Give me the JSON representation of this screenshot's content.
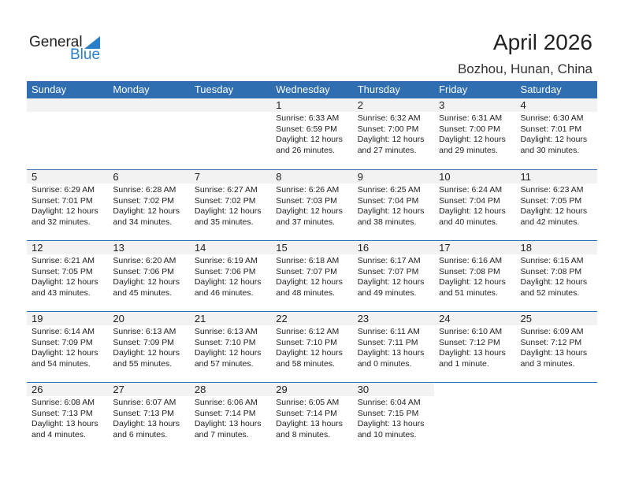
{
  "logo": {
    "text1": "General",
    "text2": "Blue"
  },
  "header": {
    "title": "April 2026",
    "location": "Bozhou, Hunan, China"
  },
  "weekdays": [
    "Sunday",
    "Monday",
    "Tuesday",
    "Wednesday",
    "Thursday",
    "Friday",
    "Saturday"
  ],
  "colors": {
    "header": "#2f6eb1",
    "date_band": "#f2f2f2"
  },
  "weeks": [
    [
      null,
      null,
      null,
      {
        "d": "1",
        "sunrise": "Sunrise: 6:33 AM",
        "sunset": "Sunset: 6:59 PM",
        "daylight": "Daylight: 12 hours",
        "minutes": "and 26 minutes."
      },
      {
        "d": "2",
        "sunrise": "Sunrise: 6:32 AM",
        "sunset": "Sunset: 7:00 PM",
        "daylight": "Daylight: 12 hours",
        "minutes": "and 27 minutes."
      },
      {
        "d": "3",
        "sunrise": "Sunrise: 6:31 AM",
        "sunset": "Sunset: 7:00 PM",
        "daylight": "Daylight: 12 hours",
        "minutes": "and 29 minutes."
      },
      {
        "d": "4",
        "sunrise": "Sunrise: 6:30 AM",
        "sunset": "Sunset: 7:01 PM",
        "daylight": "Daylight: 12 hours",
        "minutes": "and 30 minutes."
      }
    ],
    [
      {
        "d": "5",
        "sunrise": "Sunrise: 6:29 AM",
        "sunset": "Sunset: 7:01 PM",
        "daylight": "Daylight: 12 hours",
        "minutes": "and 32 minutes."
      },
      {
        "d": "6",
        "sunrise": "Sunrise: 6:28 AM",
        "sunset": "Sunset: 7:02 PM",
        "daylight": "Daylight: 12 hours",
        "minutes": "and 34 minutes."
      },
      {
        "d": "7",
        "sunrise": "Sunrise: 6:27 AM",
        "sunset": "Sunset: 7:02 PM",
        "daylight": "Daylight: 12 hours",
        "minutes": "and 35 minutes."
      },
      {
        "d": "8",
        "sunrise": "Sunrise: 6:26 AM",
        "sunset": "Sunset: 7:03 PM",
        "daylight": "Daylight: 12 hours",
        "minutes": "and 37 minutes."
      },
      {
        "d": "9",
        "sunrise": "Sunrise: 6:25 AM",
        "sunset": "Sunset: 7:04 PM",
        "daylight": "Daylight: 12 hours",
        "minutes": "and 38 minutes."
      },
      {
        "d": "10",
        "sunrise": "Sunrise: 6:24 AM",
        "sunset": "Sunset: 7:04 PM",
        "daylight": "Daylight: 12 hours",
        "minutes": "and 40 minutes."
      },
      {
        "d": "11",
        "sunrise": "Sunrise: 6:23 AM",
        "sunset": "Sunset: 7:05 PM",
        "daylight": "Daylight: 12 hours",
        "minutes": "and 42 minutes."
      }
    ],
    [
      {
        "d": "12",
        "sunrise": "Sunrise: 6:21 AM",
        "sunset": "Sunset: 7:05 PM",
        "daylight": "Daylight: 12 hours",
        "minutes": "and 43 minutes."
      },
      {
        "d": "13",
        "sunrise": "Sunrise: 6:20 AM",
        "sunset": "Sunset: 7:06 PM",
        "daylight": "Daylight: 12 hours",
        "minutes": "and 45 minutes."
      },
      {
        "d": "14",
        "sunrise": "Sunrise: 6:19 AM",
        "sunset": "Sunset: 7:06 PM",
        "daylight": "Daylight: 12 hours",
        "minutes": "and 46 minutes."
      },
      {
        "d": "15",
        "sunrise": "Sunrise: 6:18 AM",
        "sunset": "Sunset: 7:07 PM",
        "daylight": "Daylight: 12 hours",
        "minutes": "and 48 minutes."
      },
      {
        "d": "16",
        "sunrise": "Sunrise: 6:17 AM",
        "sunset": "Sunset: 7:07 PM",
        "daylight": "Daylight: 12 hours",
        "minutes": "and 49 minutes."
      },
      {
        "d": "17",
        "sunrise": "Sunrise: 6:16 AM",
        "sunset": "Sunset: 7:08 PM",
        "daylight": "Daylight: 12 hours",
        "minutes": "and 51 minutes."
      },
      {
        "d": "18",
        "sunrise": "Sunrise: 6:15 AM",
        "sunset": "Sunset: 7:08 PM",
        "daylight": "Daylight: 12 hours",
        "minutes": "and 52 minutes."
      }
    ],
    [
      {
        "d": "19",
        "sunrise": "Sunrise: 6:14 AM",
        "sunset": "Sunset: 7:09 PM",
        "daylight": "Daylight: 12 hours",
        "minutes": "and 54 minutes."
      },
      {
        "d": "20",
        "sunrise": "Sunrise: 6:13 AM",
        "sunset": "Sunset: 7:09 PM",
        "daylight": "Daylight: 12 hours",
        "minutes": "and 55 minutes."
      },
      {
        "d": "21",
        "sunrise": "Sunrise: 6:13 AM",
        "sunset": "Sunset: 7:10 PM",
        "daylight": "Daylight: 12 hours",
        "minutes": "and 57 minutes."
      },
      {
        "d": "22",
        "sunrise": "Sunrise: 6:12 AM",
        "sunset": "Sunset: 7:10 PM",
        "daylight": "Daylight: 12 hours",
        "minutes": "and 58 minutes."
      },
      {
        "d": "23",
        "sunrise": "Sunrise: 6:11 AM",
        "sunset": "Sunset: 7:11 PM",
        "daylight": "Daylight: 13 hours",
        "minutes": "and 0 minutes."
      },
      {
        "d": "24",
        "sunrise": "Sunrise: 6:10 AM",
        "sunset": "Sunset: 7:12 PM",
        "daylight": "Daylight: 13 hours",
        "minutes": "and 1 minute."
      },
      {
        "d": "25",
        "sunrise": "Sunrise: 6:09 AM",
        "sunset": "Sunset: 7:12 PM",
        "daylight": "Daylight: 13 hours",
        "minutes": "and 3 minutes."
      }
    ],
    [
      {
        "d": "26",
        "sunrise": "Sunrise: 6:08 AM",
        "sunset": "Sunset: 7:13 PM",
        "daylight": "Daylight: 13 hours",
        "minutes": "and 4 minutes."
      },
      {
        "d": "27",
        "sunrise": "Sunrise: 6:07 AM",
        "sunset": "Sunset: 7:13 PM",
        "daylight": "Daylight: 13 hours",
        "minutes": "and 6 minutes."
      },
      {
        "d": "28",
        "sunrise": "Sunrise: 6:06 AM",
        "sunset": "Sunset: 7:14 PM",
        "daylight": "Daylight: 13 hours",
        "minutes": "and 7 minutes."
      },
      {
        "d": "29",
        "sunrise": "Sunrise: 6:05 AM",
        "sunset": "Sunset: 7:14 PM",
        "daylight": "Daylight: 13 hours",
        "minutes": "and 8 minutes."
      },
      {
        "d": "30",
        "sunrise": "Sunrise: 6:04 AM",
        "sunset": "Sunset: 7:15 PM",
        "daylight": "Daylight: 13 hours",
        "minutes": "and 10 minutes."
      },
      null,
      null
    ]
  ]
}
